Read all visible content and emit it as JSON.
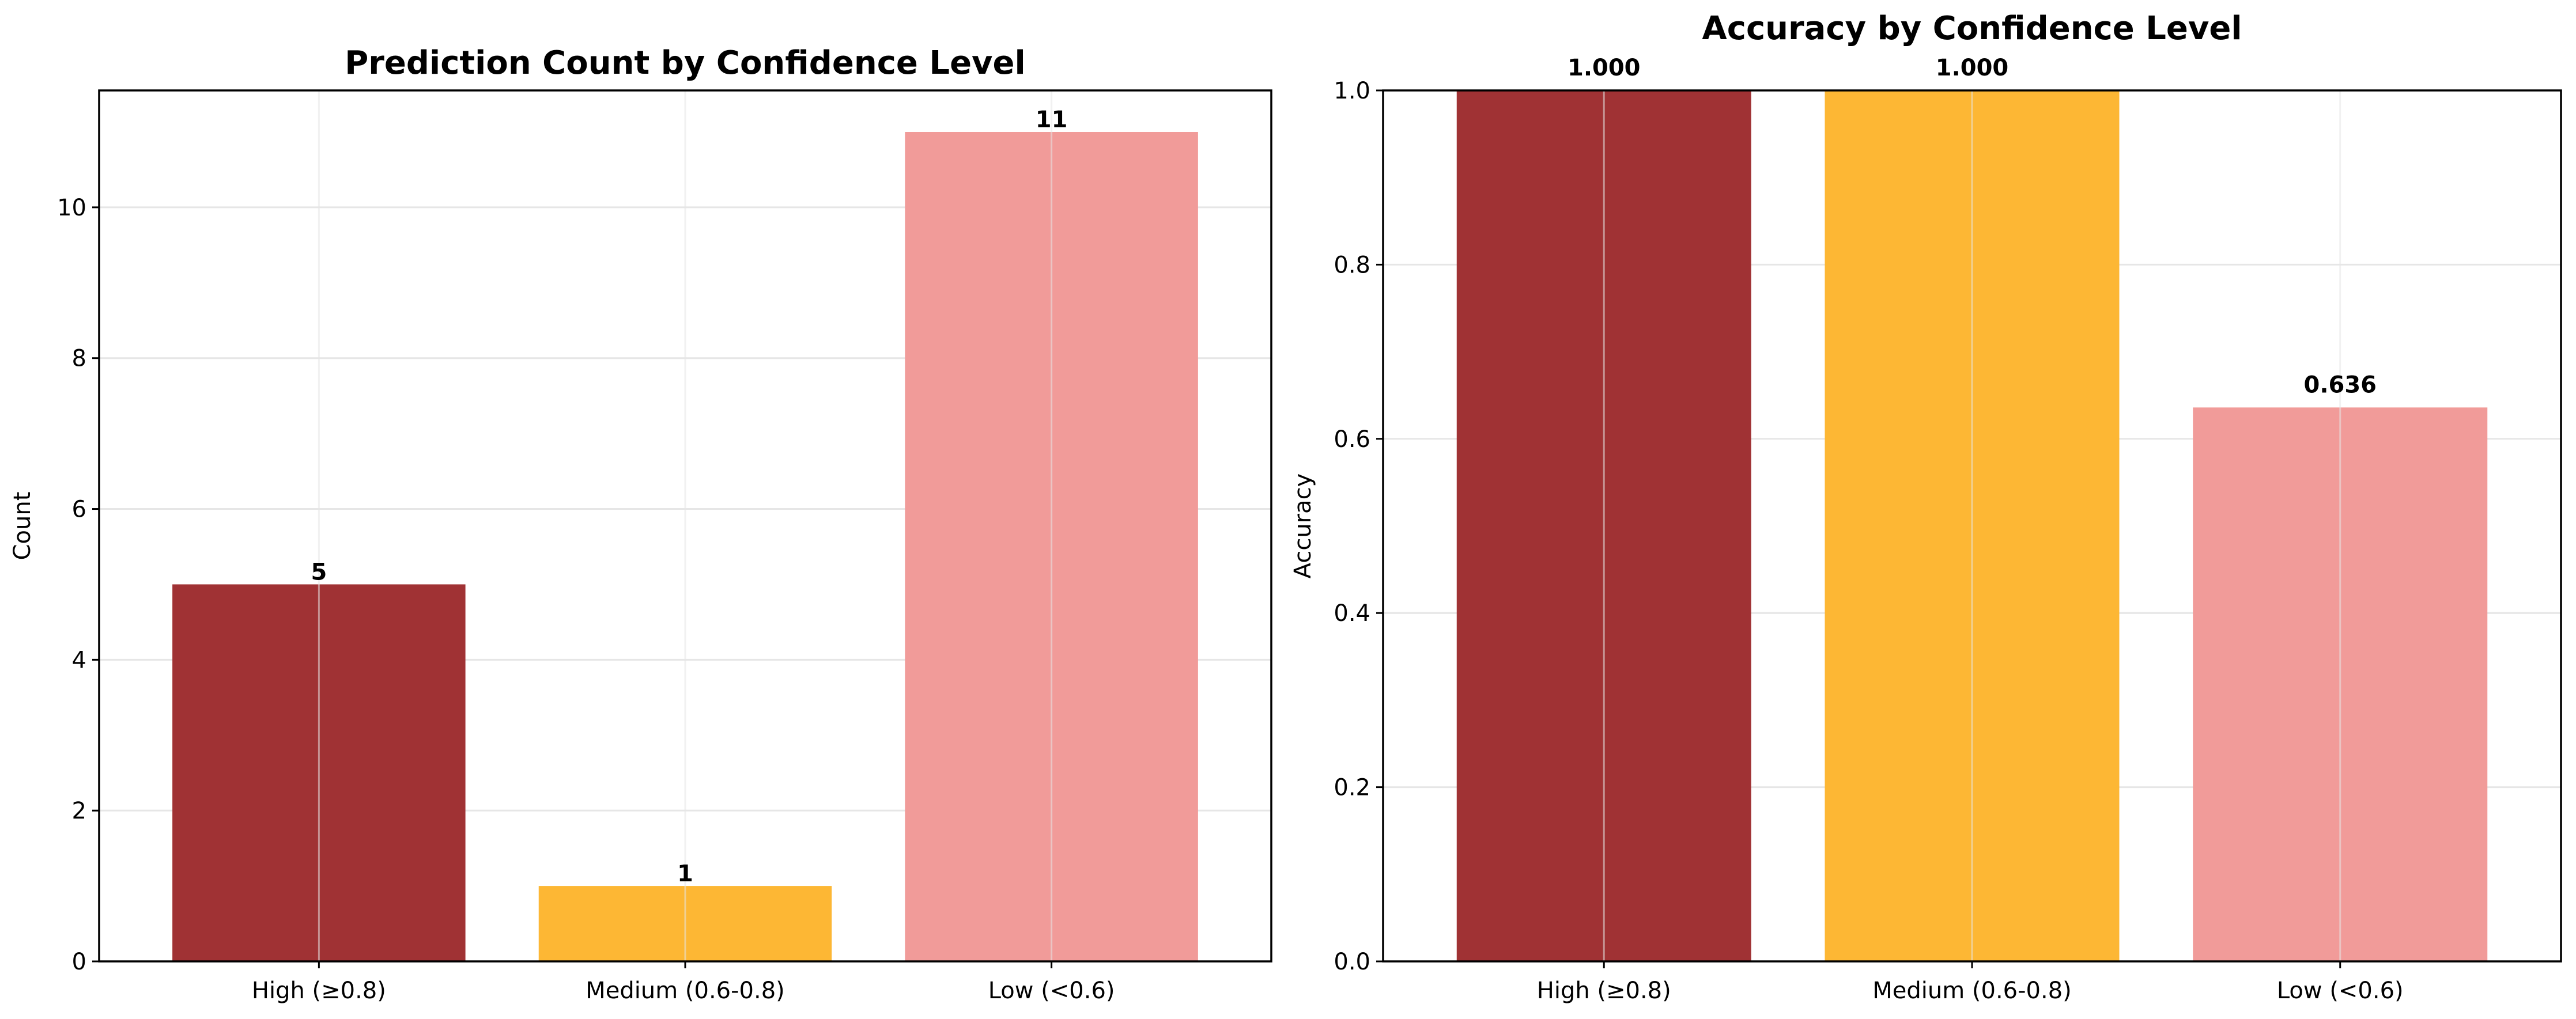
{
  "colors": {
    "high": "#a03234",
    "medium": "#fdb734",
    "low": "#f19b99",
    "grid": "#e6e6e6"
  },
  "chart_data": [
    {
      "type": "bar",
      "title": "Prediction Count by Confidence Level",
      "xlabel": "",
      "ylabel": "Count",
      "categories": [
        "High (≥0.8)",
        "Medium (0.6-0.8)",
        "Low (<0.6)"
      ],
      "values": [
        5,
        1,
        11
      ],
      "data_labels": [
        "5",
        "1",
        "11"
      ],
      "ylim": [
        0,
        11.55
      ],
      "yticks": [
        0,
        2,
        4,
        6,
        8,
        10
      ],
      "ytick_labels": [
        "0",
        "2",
        "4",
        "6",
        "8",
        "10"
      ],
      "bar_colors": [
        "#a03234",
        "#fdb734",
        "#f19b99"
      ],
      "grid": true
    },
    {
      "type": "bar",
      "title": "Accuracy by Confidence Level",
      "xlabel": "",
      "ylabel": "Accuracy",
      "categories": [
        "High (≥0.8)",
        "Medium (0.6-0.8)",
        "Low (<0.6)"
      ],
      "values": [
        1.0,
        1.0,
        0.636
      ],
      "data_labels": [
        "1.000",
        "1.000",
        "0.636"
      ],
      "ylim": [
        0,
        1.0
      ],
      "yticks": [
        0.0,
        0.2,
        0.4,
        0.6,
        0.8,
        1.0
      ],
      "ytick_labels": [
        "0.0",
        "0.2",
        "0.4",
        "0.6",
        "0.8",
        "1.0"
      ],
      "bar_colors": [
        "#a03234",
        "#fdb734",
        "#f19b99"
      ],
      "grid": true
    }
  ]
}
